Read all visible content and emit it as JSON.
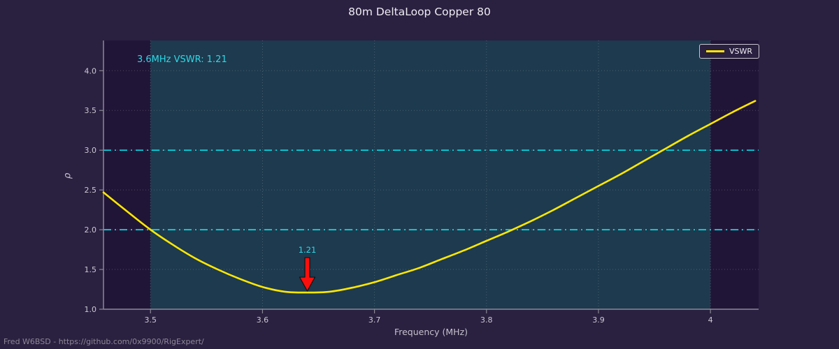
{
  "footer": "Fred W6BSD - https://github.com/0x9900/RigExpert/",
  "colors": {
    "figure_bg": "#2a2040",
    "plot_bg": "#211537",
    "band": "#1d3a4e",
    "curve": "#ffe800",
    "reference_line": "#00dfe8",
    "annotation_text": "#2fd8e6",
    "grid": "#b9b6c2",
    "axis": "#8b8795",
    "tick_label": "#ccc9d2",
    "title_text": "#efecf2",
    "footer_text": "#8d8896",
    "arrow_fill": "#fa0f0c",
    "arrow_outline": "#111111"
  },
  "chart_data": {
    "type": "line",
    "title": "80m DeltaLoop Copper 80",
    "xlabel": "Frequency (MHz)",
    "ylabel": "ρ",
    "annotation": "3.6MHz VSWR: 1.21",
    "xlim": [
      3.458,
      4.043
    ],
    "ylim": [
      1.0,
      4.38
    ],
    "xticks": [
      3.5,
      3.6,
      3.7,
      3.8,
      3.9,
      4
    ],
    "xtick_labels": [
      "3.5",
      "3.6",
      "3.7",
      "3.8",
      "3.9",
      "4"
    ],
    "yticks": [
      1.0,
      1.5,
      2.0,
      2.5,
      3.0,
      3.5,
      4.0
    ],
    "ytick_labels": [
      "1.0",
      "1.5",
      "2.0",
      "2.5",
      "3.0",
      "3.5",
      "4.0"
    ],
    "grid": true,
    "band": {
      "from": 3.5,
      "to": 4.0
    },
    "reference_lines": [
      2.0,
      3.0
    ],
    "legend_position": "upper right",
    "series": [
      {
        "name": "VSWR",
        "x": [
          3.458,
          3.48,
          3.5,
          3.52,
          3.54,
          3.56,
          3.58,
          3.6,
          3.62,
          3.64,
          3.66,
          3.68,
          3.7,
          3.72,
          3.74,
          3.76,
          3.78,
          3.8,
          3.82,
          3.84,
          3.86,
          3.88,
          3.9,
          3.92,
          3.94,
          3.96,
          3.98,
          4.0,
          4.02,
          4.04
        ],
        "y": [
          2.47,
          2.22,
          2.0,
          1.81,
          1.64,
          1.5,
          1.38,
          1.28,
          1.22,
          1.21,
          1.22,
          1.27,
          1.34,
          1.43,
          1.52,
          1.63,
          1.74,
          1.86,
          1.98,
          2.11,
          2.25,
          2.4,
          2.55,
          2.7,
          2.86,
          3.02,
          3.18,
          3.33,
          3.48,
          3.62
        ]
      }
    ],
    "min_marker": {
      "x": 3.64,
      "y": 1.21,
      "label": "1.21"
    }
  }
}
